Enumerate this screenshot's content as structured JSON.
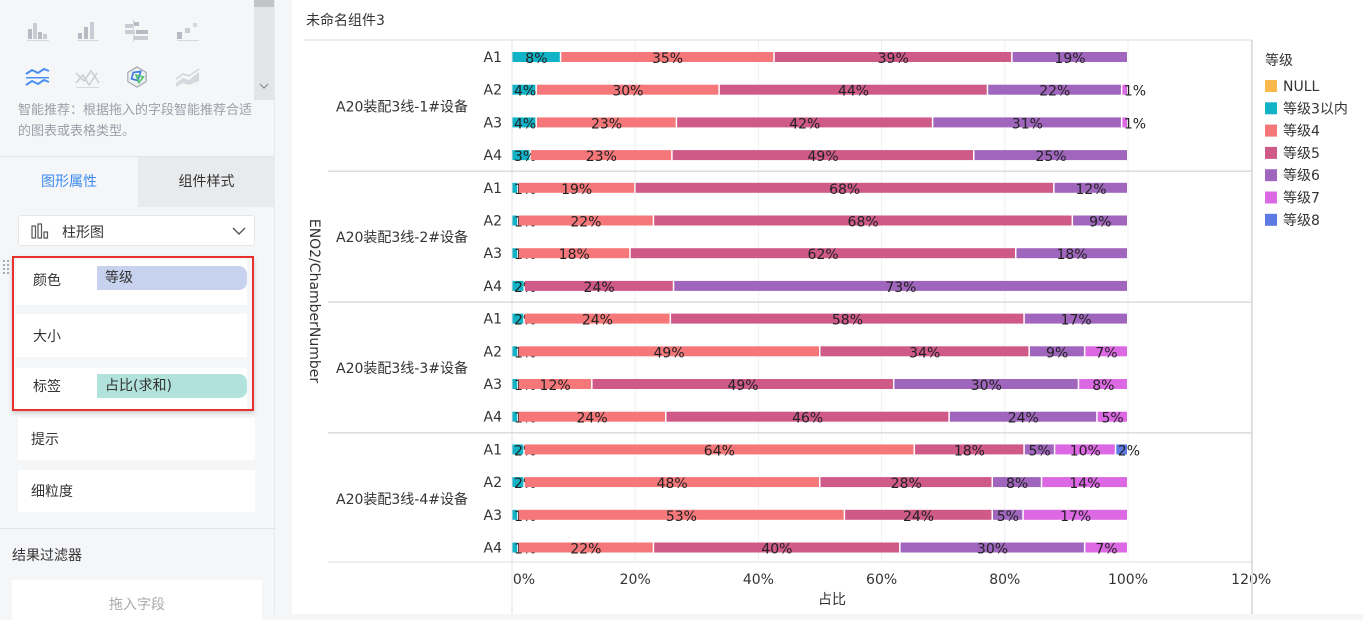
{
  "sidebar": {
    "recommend_icons": [
      "stacked-bar-chart-icon",
      "bar-chart-icon",
      "horizontal-bar-icon",
      "scatter-icon",
      "stacked-line-icon",
      "line-cross-icon",
      "radar-chart-icon",
      "area-chart-icon"
    ],
    "recommend_tip": "智能推荐：根据拖入的字段智能推荐合适的图表或表格类型。",
    "tabs": [
      {
        "label": "图形属性",
        "active": true
      },
      {
        "label": "组件样式",
        "active": false
      }
    ],
    "chart_type": "柱形图",
    "props": {
      "color_label": "颜色",
      "color_field": "等级",
      "size_label": "大小",
      "label_label": "标签",
      "label_field": "占比(求和)",
      "tooltip_label": "提示",
      "granularity_label": "细粒度"
    },
    "filter_title": "结果过滤器",
    "filter_drop": "拖入字段"
  },
  "component": {
    "title": "未命名组件3"
  },
  "colors": {
    "accent": "#3c8af0",
    "highlight_border": "#e8312f"
  },
  "chart_data": {
    "type": "bar",
    "orientation": "horizontal",
    "stacked": true,
    "percent_stacked": true,
    "xlabel": "占比",
    "ylabel": "ENO2/ChamberNumber",
    "xlim": [
      0,
      120
    ],
    "xticks": [
      "0%",
      "20%",
      "40%",
      "60%",
      "80%",
      "100%",
      "120%"
    ],
    "grid": true,
    "legend": {
      "title": "等级",
      "position": "right"
    },
    "series": [
      {
        "name": "NULL",
        "color": "#fbb84d"
      },
      {
        "name": "等级3以内",
        "color": "#12b3c7"
      },
      {
        "name": "等级4",
        "color": "#f5777a"
      },
      {
        "name": "等级5",
        "color": "#cf5a88"
      },
      {
        "name": "等级6",
        "color": "#a065bd"
      },
      {
        "name": "等级7",
        "color": "#dc68e4"
      },
      {
        "name": "等级8",
        "color": "#5d7ae4"
      }
    ],
    "groups": [
      {
        "label": "A20装配3线-1#设备",
        "rows": [
          {
            "label": "A1",
            "values": {
              "等级3以内": 8,
              "等级4": 35,
              "等级5": 39,
              "等级6": 19
            }
          },
          {
            "label": "A2",
            "values": {
              "等级3以内": 4,
              "等级4": 30,
              "等级5": 44,
              "等级6": 22,
              "等级7": 1
            }
          },
          {
            "label": "A3",
            "values": {
              "等级3以内": 4,
              "等级4": 23,
              "等级5": 42,
              "等级6": 31,
              "等级7": 1
            }
          },
          {
            "label": "A4",
            "values": {
              "等级3以内": 3,
              "等级4": 23,
              "等级5": 49,
              "等级6": 25
            }
          }
        ]
      },
      {
        "label": "A20装配3线-2#设备",
        "rows": [
          {
            "label": "A1",
            "values": {
              "等级3以内": 1,
              "等级4": 19,
              "等级5": 68,
              "等级6": 12
            }
          },
          {
            "label": "A2",
            "values": {
              "等级3以内": 1,
              "等级4": 22,
              "等级5": 68,
              "等级6": 9
            }
          },
          {
            "label": "A3",
            "values": {
              "等级3以内": 1,
              "等级4": 18,
              "等级5": 62,
              "等级6": 18
            }
          },
          {
            "label": "A4",
            "values": {
              "等级3以内": 2,
              "等级5": 24,
              "等级6": 73
            }
          }
        ]
      },
      {
        "label": "A20装配3线-3#设备",
        "rows": [
          {
            "label": "A1",
            "values": {
              "等级3以内": 2,
              "等级4": 24,
              "等级5": 58,
              "等级6": 17
            }
          },
          {
            "label": "A2",
            "values": {
              "等级3以内": 1,
              "等级4": 49,
              "等级5": 34,
              "等级6": 9,
              "等级7": 7
            }
          },
          {
            "label": "A3",
            "values": {
              "等级3以内": 1,
              "等级4": 12,
              "等级5": 49,
              "等级6": 30,
              "等级7": 8
            }
          },
          {
            "label": "A4",
            "values": {
              "等级3以内": 1,
              "等级4": 24,
              "等级5": 46,
              "等级6": 24,
              "等级7": 5
            }
          }
        ]
      },
      {
        "label": "A20装配3线-4#设备",
        "rows": [
          {
            "label": "A1",
            "values": {
              "等级3以内": 2,
              "等级4": 64,
              "等级5": 18,
              "等级6": 5,
              "等级7": 10,
              "等级8": 2
            }
          },
          {
            "label": "A2",
            "values": {
              "等级3以内": 2,
              "等级4": 48,
              "等级5": 28,
              "等级6": 8,
              "等级7": 14
            }
          },
          {
            "label": "A3",
            "values": {
              "等级3以内": 1,
              "等级4": 53,
              "等级5": 24,
              "等级6": 5,
              "等级7": 17
            }
          },
          {
            "label": "A4",
            "values": {
              "等级3以内": 1,
              "等级4": 22,
              "等级5": 40,
              "等级6": 30,
              "等级7": 7
            }
          }
        ]
      }
    ]
  }
}
